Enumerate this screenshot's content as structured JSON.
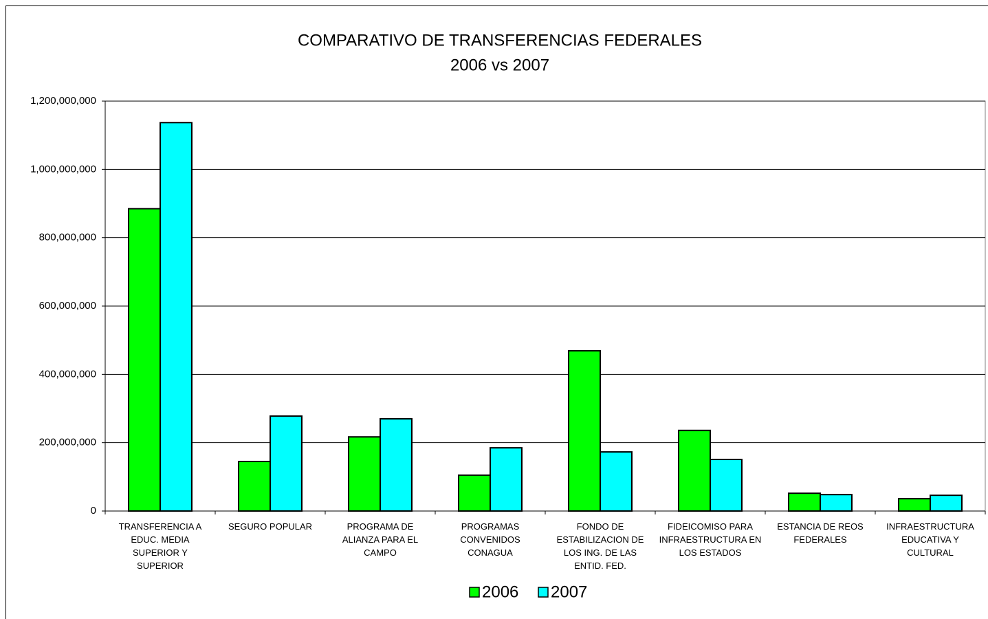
{
  "chart_data": {
    "type": "bar",
    "title": "COMPARATIVO DE TRANSFERENCIAS FEDERALES",
    "subtitle": "2006 vs 2007",
    "categories": [
      "TRANSFERENCIA A EDUC. MEDIA SUPERIOR Y SUPERIOR",
      "SEGURO POPULAR",
      "PROGRAMA DE ALIANZA PARA EL CAMPO",
      "PROGRAMAS CONVENIDOS CONAGUA",
      "FONDO DE ESTABILIZACION DE LOS ING. DE LAS ENTID. FED.",
      "FIDEICOMISO PARA INFRAESTRUCTURA EN LOS ESTADOS",
      "ESTANCIA DE REOS FEDERALES",
      "INFRAESTRUCTURA EDUCATIVA Y CULTURAL"
    ],
    "series": [
      {
        "name": "2006",
        "color": "#00ff00",
        "values": [
          885000000,
          145000000,
          217000000,
          105000000,
          469000000,
          236000000,
          52000000,
          36000000
        ]
      },
      {
        "name": "2007",
        "color": "#00ffff",
        "values": [
          1137000000,
          278000000,
          270000000,
          185000000,
          173000000,
          151000000,
          48000000,
          46000000
        ]
      }
    ],
    "ylim": [
      0,
      1200000000
    ],
    "yticks": [
      0,
      {
        "value": 200000000,
        "label": "200,000,000"
      },
      {
        "value": 400000000,
        "label": "400,000,000"
      },
      {
        "value": 600000000,
        "label": "600,000,000"
      },
      {
        "value": 800000000,
        "label": "800,000,000"
      },
      {
        "value": 1000000000,
        "label": "1,000,000,000"
      },
      {
        "value": 1200000000,
        "label": "1,200,000,000"
      }
    ],
    "grid": true,
    "legend": "bottom"
  }
}
